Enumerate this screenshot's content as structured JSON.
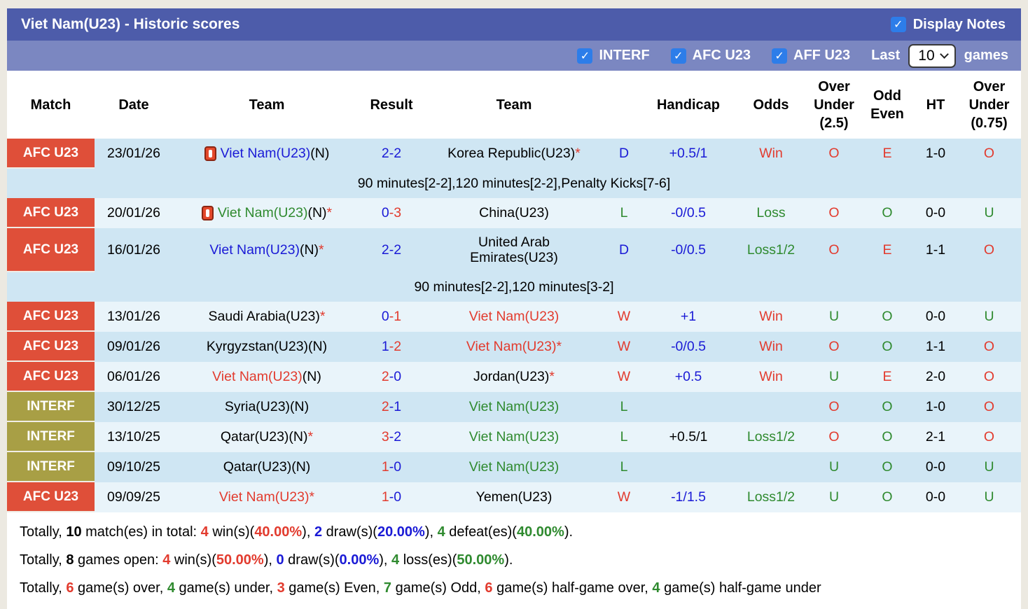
{
  "title": "Viet Nam(U23) - Historic scores",
  "display_notes": {
    "label": "Display Notes",
    "checked": true,
    "check_glyph": "✓"
  },
  "filters": [
    {
      "label": "INTERF",
      "checked": true
    },
    {
      "label": "AFC U23",
      "checked": true
    },
    {
      "label": "AFF U23",
      "checked": true
    }
  ],
  "last_games": {
    "prefix": "Last",
    "value": "10",
    "suffix": "games"
  },
  "palette": {
    "red": "#e23b2e",
    "green": "#2f8a2f",
    "blue": "#1a1ad6",
    "black": "#000000",
    "badge_afc": "#df4f39",
    "badge_interf": "#a89f45",
    "row_dark": "#cfe6f3",
    "row_light": "#e9f4fa"
  },
  "table": {
    "headers": [
      "Match",
      "Date",
      "Team",
      "Result",
      "Team",
      "",
      "Handicap",
      "Odds",
      "Over\nUnder\n(2.5)",
      "Odd\nEven",
      "HT",
      "Over\nUnder\n(0.75)"
    ],
    "rows": [
      {
        "type": "match",
        "shade": "dark",
        "badge": {
          "text": "AFC U23",
          "color": "badge_afc"
        },
        "date": "23/01/26",
        "team1": {
          "icon": true,
          "name": "Viet Nam(U23)",
          "name_color": "blue",
          "suffix": "(N)",
          "star": false
        },
        "result": {
          "home": "2",
          "away": "2",
          "home_color": "blue",
          "away_color": "blue"
        },
        "team2": {
          "icon": false,
          "name": "Korea Republic(U23)",
          "name_color": "black",
          "suffix": "",
          "star": true
        },
        "wdl": {
          "text": "D",
          "color": "blue"
        },
        "handicap": {
          "text": "+0.5/1",
          "color": "blue"
        },
        "odds": {
          "text": "Win",
          "color": "red"
        },
        "ou25": {
          "text": "O",
          "color": "red"
        },
        "oddeven": {
          "text": "E",
          "color": "red"
        },
        "ht": "1-0",
        "ou075": {
          "text": "O",
          "color": "red"
        }
      },
      {
        "type": "note",
        "shade": "dark",
        "text": "90 minutes[2-2],120 minutes[2-2],Penalty Kicks[7-6]"
      },
      {
        "type": "match",
        "shade": "light",
        "badge": {
          "text": "AFC U23",
          "color": "badge_afc"
        },
        "date": "20/01/26",
        "team1": {
          "icon": true,
          "name": "Viet Nam(U23)",
          "name_color": "green",
          "suffix": "(N)",
          "star": true
        },
        "result": {
          "home": "0",
          "away": "3",
          "home_color": "blue",
          "away_color": "red"
        },
        "team2": {
          "icon": false,
          "name": "China(U23)",
          "name_color": "black",
          "suffix": "",
          "star": false
        },
        "wdl": {
          "text": "L",
          "color": "green"
        },
        "handicap": {
          "text": "-0/0.5",
          "color": "blue"
        },
        "odds": {
          "text": "Loss",
          "color": "green"
        },
        "ou25": {
          "text": "O",
          "color": "red"
        },
        "oddeven": {
          "text": "O",
          "color": "green"
        },
        "ht": "0-0",
        "ou075": {
          "text": "U",
          "color": "green"
        }
      },
      {
        "type": "match",
        "shade": "dark",
        "tall": true,
        "badge": {
          "text": "AFC U23",
          "color": "badge_afc"
        },
        "date": "16/01/26",
        "team1": {
          "icon": false,
          "name": "Viet Nam(U23)",
          "name_color": "blue",
          "suffix": "(N)",
          "star": true
        },
        "result": {
          "home": "2",
          "away": "2",
          "home_color": "blue",
          "away_color": "blue"
        },
        "team2": {
          "icon": false,
          "name": "United Arab Emirates(U23)",
          "name_color": "black",
          "suffix": "",
          "star": false,
          "wrap": true
        },
        "wdl": {
          "text": "D",
          "color": "blue"
        },
        "handicap": {
          "text": "-0/0.5",
          "color": "blue"
        },
        "odds": {
          "text": "Loss1/2",
          "color": "green"
        },
        "ou25": {
          "text": "O",
          "color": "red"
        },
        "oddeven": {
          "text": "E",
          "color": "red"
        },
        "ht": "1-1",
        "ou075": {
          "text": "O",
          "color": "red"
        }
      },
      {
        "type": "note",
        "shade": "dark",
        "text": "90 minutes[2-2],120 minutes[3-2]"
      },
      {
        "type": "match",
        "shade": "light",
        "badge": {
          "text": "AFC U23",
          "color": "badge_afc"
        },
        "date": "13/01/26",
        "team1": {
          "icon": false,
          "name": "Saudi Arabia(U23)",
          "name_color": "black",
          "suffix": "",
          "star": true
        },
        "result": {
          "home": "0",
          "away": "1",
          "home_color": "blue",
          "away_color": "red"
        },
        "team2": {
          "icon": false,
          "name": "Viet Nam(U23)",
          "name_color": "red",
          "suffix": "",
          "star": false
        },
        "wdl": {
          "text": "W",
          "color": "red"
        },
        "handicap": {
          "text": "+1",
          "color": "blue"
        },
        "odds": {
          "text": "Win",
          "color": "red"
        },
        "ou25": {
          "text": "U",
          "color": "green"
        },
        "oddeven": {
          "text": "O",
          "color": "green"
        },
        "ht": "0-0",
        "ou075": {
          "text": "U",
          "color": "green"
        }
      },
      {
        "type": "match",
        "shade": "dark",
        "badge": {
          "text": "AFC U23",
          "color": "badge_afc"
        },
        "date": "09/01/26",
        "team1": {
          "icon": false,
          "name": "Kyrgyzstan(U23)(N)",
          "name_color": "black",
          "suffix": "",
          "star": false
        },
        "result": {
          "home": "1",
          "away": "2",
          "home_color": "blue",
          "away_color": "red"
        },
        "team2": {
          "icon": false,
          "name": "Viet Nam(U23)",
          "name_color": "red",
          "suffix": "",
          "star": true
        },
        "wdl": {
          "text": "W",
          "color": "red"
        },
        "handicap": {
          "text": "-0/0.5",
          "color": "blue"
        },
        "odds": {
          "text": "Win",
          "color": "red"
        },
        "ou25": {
          "text": "O",
          "color": "red"
        },
        "oddeven": {
          "text": "O",
          "color": "green"
        },
        "ht": "1-1",
        "ou075": {
          "text": "O",
          "color": "red"
        }
      },
      {
        "type": "match",
        "shade": "light",
        "badge": {
          "text": "AFC U23",
          "color": "badge_afc"
        },
        "date": "06/01/26",
        "team1": {
          "icon": false,
          "name": "Viet Nam(U23)",
          "name_color": "red",
          "suffix": "(N)",
          "star": false
        },
        "result": {
          "home": "2",
          "away": "0",
          "home_color": "red",
          "away_color": "blue"
        },
        "team2": {
          "icon": false,
          "name": "Jordan(U23)",
          "name_color": "black",
          "suffix": "",
          "star": true
        },
        "wdl": {
          "text": "W",
          "color": "red"
        },
        "handicap": {
          "text": "+0.5",
          "color": "blue"
        },
        "odds": {
          "text": "Win",
          "color": "red"
        },
        "ou25": {
          "text": "U",
          "color": "green"
        },
        "oddeven": {
          "text": "E",
          "color": "red"
        },
        "ht": "2-0",
        "ou075": {
          "text": "O",
          "color": "red"
        }
      },
      {
        "type": "match",
        "shade": "dark",
        "badge": {
          "text": "INTERF",
          "color": "badge_interf"
        },
        "date": "30/12/25",
        "team1": {
          "icon": false,
          "name": "Syria(U23)(N)",
          "name_color": "black",
          "suffix": "",
          "star": false
        },
        "result": {
          "home": "2",
          "away": "1",
          "home_color": "red",
          "away_color": "blue"
        },
        "team2": {
          "icon": false,
          "name": "Viet Nam(U23)",
          "name_color": "green",
          "suffix": "",
          "star": false
        },
        "wdl": {
          "text": "L",
          "color": "green"
        },
        "handicap": {
          "text": "",
          "color": "black"
        },
        "odds": {
          "text": "",
          "color": "black"
        },
        "ou25": {
          "text": "O",
          "color": "red"
        },
        "oddeven": {
          "text": "O",
          "color": "green"
        },
        "ht": "1-0",
        "ou075": {
          "text": "O",
          "color": "red"
        }
      },
      {
        "type": "match",
        "shade": "light",
        "badge": {
          "text": "INTERF",
          "color": "badge_interf"
        },
        "date": "13/10/25",
        "team1": {
          "icon": false,
          "name": "Qatar(U23)(N)",
          "name_color": "black",
          "suffix": "",
          "star": true
        },
        "result": {
          "home": "3",
          "away": "2",
          "home_color": "red",
          "away_color": "blue"
        },
        "team2": {
          "icon": false,
          "name": "Viet Nam(U23)",
          "name_color": "green",
          "suffix": "",
          "star": false
        },
        "wdl": {
          "text": "L",
          "color": "green"
        },
        "handicap": {
          "text": "+0.5/1",
          "color": "black"
        },
        "odds": {
          "text": "Loss1/2",
          "color": "green"
        },
        "ou25": {
          "text": "O",
          "color": "red"
        },
        "oddeven": {
          "text": "O",
          "color": "green"
        },
        "ht": "2-1",
        "ou075": {
          "text": "O",
          "color": "red"
        }
      },
      {
        "type": "match",
        "shade": "dark",
        "badge": {
          "text": "INTERF",
          "color": "badge_interf"
        },
        "date": "09/10/25",
        "team1": {
          "icon": false,
          "name": "Qatar(U23)(N)",
          "name_color": "black",
          "suffix": "",
          "star": false
        },
        "result": {
          "home": "1",
          "away": "0",
          "home_color": "red",
          "away_color": "blue"
        },
        "team2": {
          "icon": false,
          "name": "Viet Nam(U23)",
          "name_color": "green",
          "suffix": "",
          "star": false
        },
        "wdl": {
          "text": "L",
          "color": "green"
        },
        "handicap": {
          "text": "",
          "color": "black"
        },
        "odds": {
          "text": "",
          "color": "black"
        },
        "ou25": {
          "text": "U",
          "color": "green"
        },
        "oddeven": {
          "text": "O",
          "color": "green"
        },
        "ht": "0-0",
        "ou075": {
          "text": "U",
          "color": "green"
        }
      },
      {
        "type": "match",
        "shade": "light",
        "badge": {
          "text": "AFC U23",
          "color": "badge_afc"
        },
        "date": "09/09/25",
        "team1": {
          "icon": false,
          "name": "Viet Nam(U23)",
          "name_color": "red",
          "suffix": "",
          "star": true
        },
        "result": {
          "home": "1",
          "away": "0",
          "home_color": "red",
          "away_color": "blue"
        },
        "team2": {
          "icon": false,
          "name": "Yemen(U23)",
          "name_color": "black",
          "suffix": "",
          "star": false
        },
        "wdl": {
          "text": "W",
          "color": "red"
        },
        "handicap": {
          "text": "-1/1.5",
          "color": "blue"
        },
        "odds": {
          "text": "Loss1/2",
          "color": "green"
        },
        "ou25": {
          "text": "U",
          "color": "green"
        },
        "oddeven": {
          "text": "O",
          "color": "green"
        },
        "ht": "0-0",
        "ou075": {
          "text": "U",
          "color": "green"
        }
      }
    ]
  },
  "summary": [
    [
      {
        "t": "Totally, ",
        "c": "black"
      },
      {
        "t": "10",
        "c": "black",
        "b": 1
      },
      {
        "t": " match(es) in total: ",
        "c": "black"
      },
      {
        "t": "4",
        "c": "red",
        "b": 1
      },
      {
        "t": " win(s)(",
        "c": "black"
      },
      {
        "t": "40.00%",
        "c": "red",
        "b": 1
      },
      {
        "t": "), ",
        "c": "black"
      },
      {
        "t": "2",
        "c": "blue",
        "b": 1
      },
      {
        "t": " draw(s)(",
        "c": "black"
      },
      {
        "t": "20.00%",
        "c": "blue",
        "b": 1
      },
      {
        "t": "), ",
        "c": "black"
      },
      {
        "t": "4",
        "c": "green",
        "b": 1
      },
      {
        "t": " defeat(es)(",
        "c": "black"
      },
      {
        "t": "40.00%",
        "c": "green",
        "b": 1
      },
      {
        "t": ").",
        "c": "black"
      }
    ],
    [
      {
        "t": "Totally, ",
        "c": "black"
      },
      {
        "t": "8",
        "c": "black",
        "b": 1
      },
      {
        "t": " games open: ",
        "c": "black"
      },
      {
        "t": "4",
        "c": "red",
        "b": 1
      },
      {
        "t": " win(s)(",
        "c": "black"
      },
      {
        "t": "50.00%",
        "c": "red",
        "b": 1
      },
      {
        "t": "), ",
        "c": "black"
      },
      {
        "t": "0",
        "c": "blue",
        "b": 1
      },
      {
        "t": " draw(s)(",
        "c": "black"
      },
      {
        "t": "0.00%",
        "c": "blue",
        "b": 1
      },
      {
        "t": "), ",
        "c": "black"
      },
      {
        "t": "4",
        "c": "green",
        "b": 1
      },
      {
        "t": " loss(es)(",
        "c": "black"
      },
      {
        "t": "50.00%",
        "c": "green",
        "b": 1
      },
      {
        "t": ").",
        "c": "black"
      }
    ],
    [
      {
        "t": "Totally, ",
        "c": "black"
      },
      {
        "t": "6",
        "c": "red",
        "b": 1
      },
      {
        "t": " game(s) over, ",
        "c": "black"
      },
      {
        "t": "4",
        "c": "green",
        "b": 1
      },
      {
        "t": " game(s) under, ",
        "c": "black"
      },
      {
        "t": "3",
        "c": "red",
        "b": 1
      },
      {
        "t": " game(s) Even, ",
        "c": "black"
      },
      {
        "t": "7",
        "c": "green",
        "b": 1
      },
      {
        "t": " game(s) Odd, ",
        "c": "black"
      },
      {
        "t": "6",
        "c": "red",
        "b": 1
      },
      {
        "t": " game(s) half-game over, ",
        "c": "black"
      },
      {
        "t": "4",
        "c": "green",
        "b": 1
      },
      {
        "t": " game(s) half-game under",
        "c": "black"
      }
    ]
  ]
}
